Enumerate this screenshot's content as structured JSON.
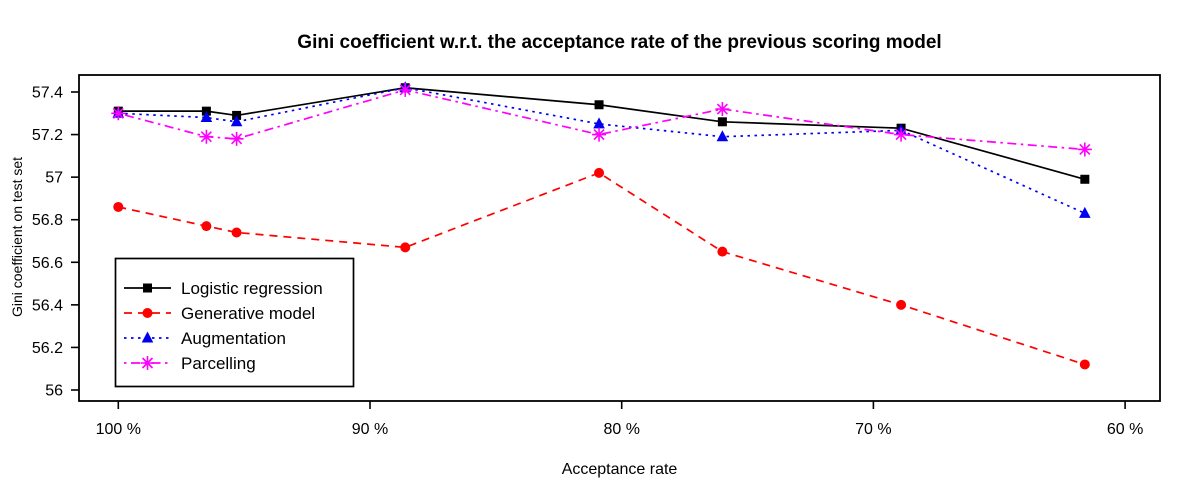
{
  "title": "Gini coefficient w.r.t. the acceptance rate of the previous scoring model",
  "chart_data": {
    "type": "line",
    "title": "Gini coefficient w.r.t. the acceptance rate of the previous scoring model",
    "xlabel": "Acceptance rate",
    "ylabel": "Gini coefficient on test set",
    "x_unit": "%",
    "x_axis_reversed": true,
    "x": [
      100,
      96.5,
      95.3,
      88.6,
      80.9,
      76.0,
      68.9,
      61.6
    ],
    "x_ticks": [
      100,
      90,
      80,
      70,
      60
    ],
    "x_tick_labels": [
      "100 %",
      "90 %",
      "80 %",
      "70 %",
      "60 %"
    ],
    "ylim": [
      56,
      57.4
    ],
    "xlim_pct": [
      101.6,
      58.6
    ],
    "y_ticks": [
      56,
      56.2,
      56.4,
      56.6,
      56.8,
      57,
      57.2,
      57.4
    ],
    "y_tick_labels": [
      "56",
      "56.2",
      "56.4",
      "56.6",
      "56.8",
      "57",
      "57.2",
      "57.4"
    ],
    "grid": false,
    "legend_position": "inside-bottom-left",
    "series": [
      {
        "name": "Logistic regression",
        "color": "#000000",
        "line_style": "solid",
        "marker": "square",
        "values": [
          57.31,
          57.31,
          57.29,
          57.42,
          57.34,
          57.26,
          57.23,
          56.99
        ]
      },
      {
        "name": "Generative model",
        "color": "#FF0000",
        "line_style": "dashed",
        "marker": "circle",
        "values": [
          56.86,
          56.77,
          56.74,
          56.67,
          57.02,
          56.65,
          56.4,
          56.12
        ]
      },
      {
        "name": "Augmentation",
        "color": "#0000EE",
        "line_style": "dotted",
        "marker": "triangle",
        "values": [
          57.3,
          57.28,
          57.26,
          57.42,
          57.25,
          57.19,
          57.22,
          56.83
        ]
      },
      {
        "name": "Parcelling",
        "color": "#FF00FF",
        "line_style": "dashdot",
        "marker": "star",
        "values": [
          57.3,
          57.19,
          57.18,
          57.41,
          57.2,
          57.32,
          57.2,
          57.13
        ]
      }
    ]
  }
}
